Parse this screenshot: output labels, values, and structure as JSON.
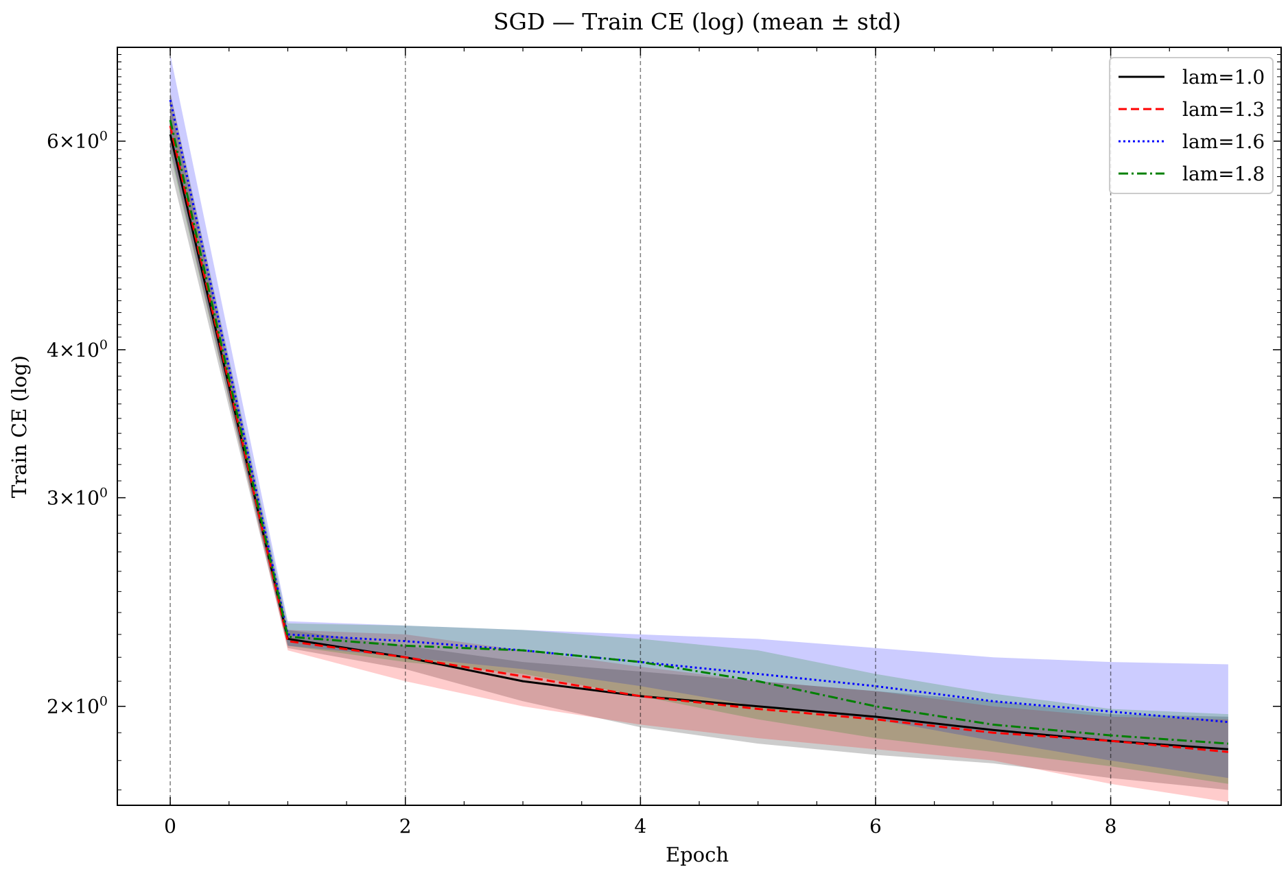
{
  "chart_data": {
    "type": "line",
    "title": "SGD — Train CE (log) (mean ± std)",
    "xlabel": "Epoch",
    "ylabel": "Train CE (log)",
    "y_scale": "log",
    "xlim": [
      -0.45,
      9.45
    ],
    "ylim": [
      1.65,
      7.2
    ],
    "x_ticks": [
      0,
      2,
      4,
      6,
      8
    ],
    "x_tick_labels": [
      "0",
      "2",
      "4",
      "6",
      "8"
    ],
    "y_ticks": [
      2,
      3,
      4,
      6
    ],
    "y_tick_labels": [
      "2",
      "3",
      "4",
      "6"
    ],
    "y_tick_label_format": "mult-x-10-pow-0",
    "grid": "vertical dashed at major x ticks",
    "legend_position": "top-right",
    "x": [
      0,
      1,
      2,
      3,
      4,
      5,
      6,
      7,
      8,
      9
    ],
    "series": [
      {
        "name": "lam=1.0",
        "color": "#000000",
        "dash": "solid",
        "mean": [
          6.08,
          2.28,
          2.2,
          2.1,
          2.04,
          2.0,
          1.96,
          1.91,
          1.87,
          1.84
        ],
        "lower": [
          5.7,
          2.24,
          2.15,
          2.02,
          1.92,
          1.86,
          1.82,
          1.79,
          1.74,
          1.7
        ],
        "upper": [
          6.45,
          2.32,
          2.25,
          2.18,
          2.14,
          2.1,
          2.06,
          2.02,
          1.97,
          1.96
        ]
      },
      {
        "name": "lam=1.3",
        "color": "#ff0000",
        "dash": "dashed",
        "mean": [
          6.18,
          2.27,
          2.2,
          2.12,
          2.04,
          1.99,
          1.95,
          1.9,
          1.87,
          1.83
        ],
        "lower": [
          5.9,
          2.23,
          2.1,
          2.0,
          1.93,
          1.88,
          1.84,
          1.8,
          1.72,
          1.66
        ],
        "upper": [
          6.6,
          2.32,
          2.3,
          2.23,
          2.16,
          2.1,
          2.06,
          2.0,
          1.96,
          1.95
        ]
      },
      {
        "name": "lam=1.6",
        "color": "#0000ff",
        "dash": "dotted",
        "mean": [
          6.5,
          2.3,
          2.27,
          2.23,
          2.18,
          2.13,
          2.08,
          2.02,
          1.98,
          1.94
        ],
        "lower": [
          5.9,
          2.25,
          2.2,
          2.15,
          2.08,
          2.0,
          1.95,
          1.87,
          1.8,
          1.74
        ],
        "upper": [
          7.1,
          2.36,
          2.34,
          2.32,
          2.3,
          2.28,
          2.24,
          2.2,
          2.18,
          2.17
        ]
      },
      {
        "name": "lam=1.8",
        "color": "#008000",
        "dash": "dashdot",
        "mean": [
          6.25,
          2.29,
          2.25,
          2.23,
          2.18,
          2.1,
          2.0,
          1.93,
          1.89,
          1.86
        ],
        "lower": [
          5.85,
          2.25,
          2.18,
          2.13,
          2.04,
          1.95,
          1.88,
          1.83,
          1.78,
          1.72
        ],
        "upper": [
          6.6,
          2.35,
          2.34,
          2.32,
          2.28,
          2.23,
          2.13,
          2.05,
          1.99,
          1.97
        ]
      }
    ]
  }
}
